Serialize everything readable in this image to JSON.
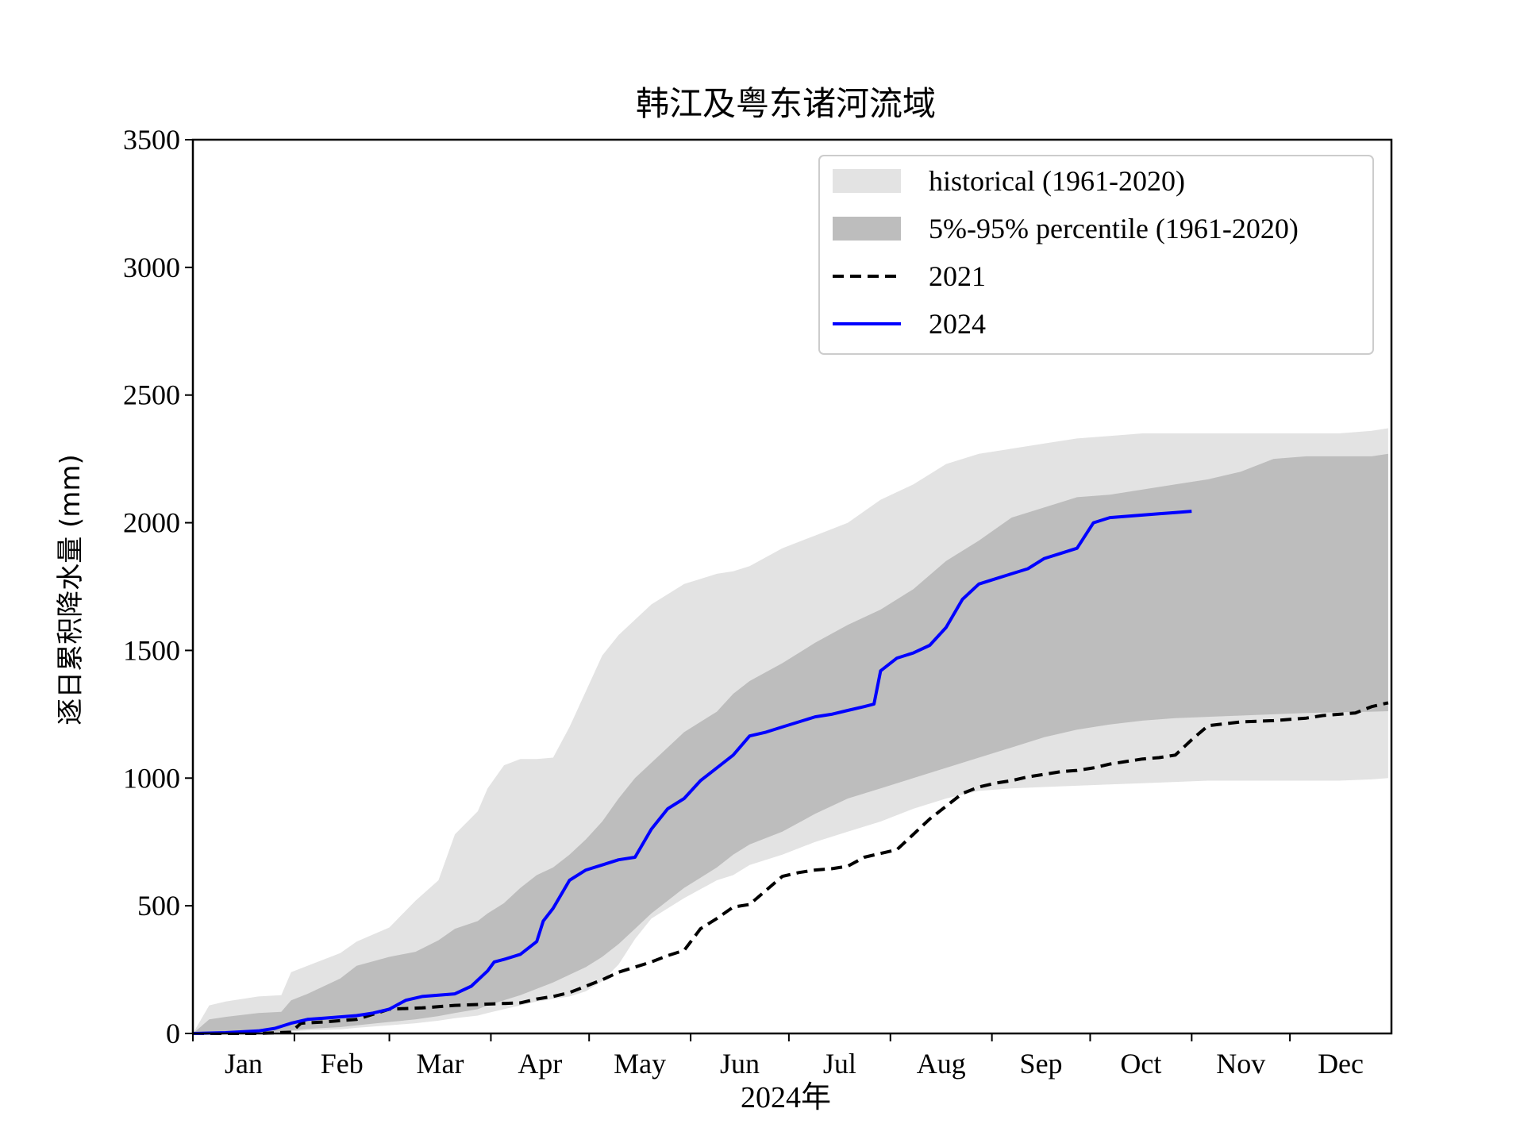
{
  "chart_data": {
    "type": "area",
    "title": "韩江及粤东诸河流域",
    "xlabel": "2024年",
    "ylabel": "逐日累积降水量 (mm)",
    "ylim": [
      0,
      3500
    ],
    "xlim": [
      0,
      366
    ],
    "yticks": [
      0,
      500,
      1000,
      1500,
      2000,
      2500,
      3000,
      3500
    ],
    "month_labels": [
      "Jan",
      "Feb",
      "Mar",
      "Apr",
      "May",
      "Jun",
      "Jul",
      "Aug",
      "Sep",
      "Oct",
      "Nov",
      "Dec"
    ],
    "month_starts": [
      0,
      31,
      60,
      91,
      121,
      152,
      182,
      213,
      244,
      274,
      305,
      335
    ],
    "legend_position": "upper-right",
    "grid": false,
    "legend": [
      {
        "label": "historical (1961-2020)",
        "kind": "fill",
        "color": "#e3e3e3"
      },
      {
        "label": "5%-95% percentile (1961-2020)",
        "kind": "fill",
        "color": "#bdbdbd"
      },
      {
        "label": "2021",
        "kind": "dashed",
        "color": "#000000"
      },
      {
        "label": "2024",
        "kind": "line",
        "color": "#0000ff"
      }
    ],
    "bands": [
      {
        "name": "historical (1961-2020)",
        "color": "#e3e3e3",
        "x": [
          0,
          5,
          10,
          20,
          27,
          30,
          35,
          45,
          50,
          60,
          68,
          75,
          80,
          87,
          90,
          95,
          100,
          105,
          110,
          115,
          120,
          125,
          130,
          135,
          140,
          150,
          160,
          165,
          170,
          180,
          190,
          200,
          210,
          220,
          230,
          240,
          250,
          260,
          270,
          280,
          290,
          300,
          310,
          320,
          330,
          340,
          350,
          360,
          365
        ],
        "upper": [
          0,
          110,
          125,
          145,
          150,
          240,
          265,
          315,
          360,
          415,
          520,
          600,
          780,
          870,
          960,
          1050,
          1075,
          1075,
          1080,
          1200,
          1340,
          1480,
          1560,
          1620,
          1680,
          1760,
          1800,
          1810,
          1830,
          1900,
          1950,
          2000,
          2090,
          2150,
          2230,
          2270,
          2290,
          2310,
          2330,
          2340,
          2350,
          2350,
          2350,
          2350,
          2350,
          2350,
          2350,
          2360,
          2370
        ],
        "lower": [
          0,
          0,
          0,
          2,
          4,
          8,
          12,
          16,
          22,
          32,
          40,
          50,
          60,
          70,
          80,
          95,
          110,
          125,
          135,
          145,
          165,
          205,
          270,
          370,
          450,
          530,
          600,
          620,
          660,
          700,
          750,
          790,
          830,
          880,
          920,
          950,
          960,
          965,
          970,
          975,
          980,
          985,
          990,
          990,
          990,
          990,
          990,
          995,
          1000
        ]
      },
      {
        "name": "5%-95% percentile (1961-2020)",
        "color": "#bdbdbd",
        "x": [
          0,
          5,
          10,
          20,
          27,
          30,
          35,
          45,
          50,
          60,
          68,
          75,
          80,
          87,
          90,
          95,
          100,
          105,
          110,
          115,
          120,
          125,
          130,
          135,
          140,
          150,
          160,
          165,
          170,
          180,
          190,
          200,
          210,
          220,
          230,
          240,
          250,
          260,
          270,
          280,
          290,
          300,
          310,
          320,
          330,
          340,
          350,
          360,
          365
        ],
        "upper": [
          0,
          55,
          65,
          80,
          85,
          130,
          155,
          215,
          265,
          300,
          320,
          365,
          410,
          440,
          470,
          510,
          570,
          620,
          650,
          700,
          760,
          830,
          920,
          1000,
          1060,
          1180,
          1260,
          1330,
          1380,
          1450,
          1530,
          1600,
          1660,
          1740,
          1850,
          1930,
          2020,
          2060,
          2100,
          2110,
          2130,
          2150,
          2170,
          2200,
          2250,
          2260,
          2260,
          2260,
          2270
        ],
        "lower": [
          0,
          1,
          2,
          5,
          8,
          12,
          18,
          25,
          32,
          45,
          55,
          68,
          80,
          95,
          110,
          130,
          150,
          175,
          200,
          230,
          260,
          300,
          350,
          410,
          470,
          570,
          650,
          700,
          740,
          790,
          860,
          920,
          960,
          1000,
          1040,
          1080,
          1120,
          1160,
          1190,
          1210,
          1225,
          1235,
          1240,
          1245,
          1250,
          1255,
          1258,
          1260,
          1262
        ]
      }
    ],
    "series": [
      {
        "name": "2021",
        "color": "#000000",
        "style": "dashed",
        "x": [
          0,
          20,
          30,
          33,
          40,
          50,
          55,
          60,
          70,
          80,
          90,
          100,
          105,
          110,
          115,
          120,
          125,
          130,
          135,
          140,
          145,
          150,
          155,
          160,
          165,
          170,
          175,
          180,
          185,
          190,
          195,
          200,
          205,
          210,
          215,
          220,
          225,
          230,
          235,
          240,
          245,
          250,
          255,
          260,
          265,
          270,
          275,
          280,
          285,
          290,
          295,
          300,
          305,
          310,
          320,
          330,
          340,
          345,
          350,
          355,
          360,
          365
        ],
        "y": [
          0,
          0,
          5,
          40,
          45,
          55,
          75,
          95,
          100,
          110,
          115,
          120,
          135,
          145,
          160,
          185,
          210,
          240,
          260,
          280,
          305,
          325,
          410,
          450,
          495,
          505,
          560,
          615,
          630,
          640,
          645,
          655,
          690,
          705,
          720,
          780,
          840,
          890,
          940,
          965,
          980,
          990,
          1005,
          1015,
          1025,
          1030,
          1040,
          1055,
          1065,
          1075,
          1080,
          1090,
          1150,
          1205,
          1220,
          1225,
          1235,
          1245,
          1250,
          1255,
          1280,
          1295
        ]
      },
      {
        "name": "2024",
        "color": "#0000ff",
        "style": "solid",
        "x": [
          0,
          10,
          20,
          25,
          30,
          35,
          40,
          45,
          50,
          55,
          60,
          65,
          70,
          75,
          80,
          85,
          90,
          92,
          95,
          100,
          105,
          107,
          110,
          115,
          120,
          125,
          130,
          135,
          140,
          145,
          150,
          155,
          160,
          165,
          170,
          175,
          180,
          185,
          190,
          195,
          200,
          205,
          208,
          210,
          215,
          220,
          225,
          230,
          235,
          240,
          245,
          250,
          255,
          260,
          265,
          270,
          275,
          280,
          285,
          290,
          295,
          300,
          305
        ],
        "y": [
          0,
          3,
          10,
          20,
          40,
          55,
          60,
          65,
          70,
          80,
          95,
          130,
          145,
          150,
          155,
          185,
          245,
          280,
          290,
          310,
          360,
          440,
          490,
          600,
          640,
          660,
          680,
          690,
          800,
          880,
          920,
          990,
          1040,
          1090,
          1165,
          1180,
          1200,
          1220,
          1240,
          1250,
          1265,
          1280,
          1290,
          1420,
          1470,
          1490,
          1520,
          1590,
          1700,
          1760,
          1780,
          1800,
          1820,
          1860,
          1880,
          1900,
          2000,
          2020,
          2025,
          2030,
          2035,
          2040,
          2045
        ]
      }
    ]
  }
}
